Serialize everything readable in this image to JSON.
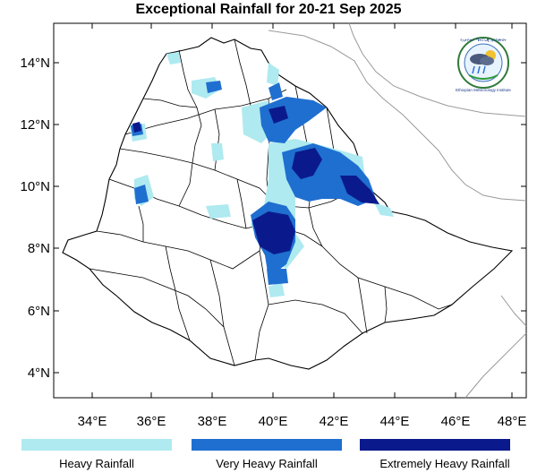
{
  "title": "Exceptional Rainfall for 20-21 Sep 2025",
  "lat_ticks": [
    "14°N",
    "12°N",
    "10°N",
    "8°N",
    "6°N",
    "4°N"
  ],
  "lon_ticks": [
    "34°E",
    "36°E",
    "38°E",
    "40°E",
    "42°E",
    "44°E",
    "46°E",
    "48°E"
  ],
  "legend": [
    {
      "label": "Heavy Rainfall",
      "color": "#aeeaf0"
    },
    {
      "label": "Very Heavy Rainfall",
      "color": "#1f6fd0"
    },
    {
      "label": "Extremely Heavy Rainfall",
      "color": "#0a1a8c"
    }
  ],
  "logo": {
    "text": "Ethiopian Meteorology Institute",
    "amharic": "የኢትዮጵያ ሜትሮሎጂ ኢንስቲትዩት"
  }
}
